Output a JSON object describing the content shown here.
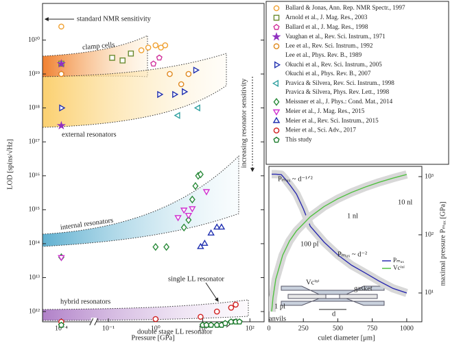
{
  "chart_data": [
    {
      "type": "scatter",
      "x_label": "Pressure [GPa]",
      "y_label": "LOD [spins/√Hz]",
      "xscale": "log",
      "yscale": "log",
      "xlim": [
        4e-05,
        200
      ],
      "x_break": [
        0.0004,
        0.06
      ],
      "ylim": [
        500000000000.0,
        1.2e+21
      ],
      "xticks": [
        {
          "value": 0.0001,
          "label": "10⁻⁴"
        },
        {
          "value": 0.1,
          "label": "10⁻¹"
        },
        {
          "value": 1,
          "label": "10⁰"
        },
        {
          "value": 10,
          "label": "10¹"
        },
        {
          "value": 100,
          "label": "10²"
        }
      ],
      "yticks": [
        {
          "value": 1000000000000.0,
          "label": "10¹²"
        },
        {
          "value": 10000000000000.0,
          "label": "10¹³"
        },
        {
          "value": 100000000000000.0,
          "label": "10¹⁴"
        },
        {
          "value": 1000000000000000.0,
          "label": "10¹⁵"
        },
        {
          "value": 1e+16,
          "label": "10¹⁶"
        },
        {
          "value": 1e+17,
          "label": "10¹⁷"
        },
        {
          "value": 1e+18,
          "label": "10¹⁸"
        },
        {
          "value": 1e+19,
          "label": "10¹⁹"
        },
        {
          "value": 1e+20,
          "label": "10²⁰"
        }
      ],
      "annotations": [
        "standard NMR sensitivity",
        "clamp cells",
        "external resonators",
        "internal resonators",
        "hybrid resonators",
        "single LL resonator",
        "double stage LL resonator",
        "increasing resonator sensitivity"
      ],
      "series": [
        {
          "name": "Ballard & Jonas, Ann. Rep. NMR Spectr., 1997",
          "color": "#f0a030",
          "marker": "circle",
          "filled": false,
          "x": [
            0.0001,
            0.5,
            0.7,
            1.0,
            1.3,
            1.6
          ],
          "values": [
            2.5e+20,
            5e+19,
            6e+19,
            7e+19,
            6e+19,
            7e+19
          ]
        },
        {
          "name": "Arnold et al., J. Mag. Res., 2003",
          "color": "#6a8a30",
          "marker": "square",
          "filled": false,
          "x": [
            0.0001,
            0.12,
            0.2,
            0.3
          ],
          "values": [
            2e+19,
            3e+19,
            2.5e+19,
            4e+19
          ]
        },
        {
          "name": "Ballard et al., J. Mag. Res., 1998",
          "color": "#d0309a",
          "marker": "pentagon",
          "filled": false,
          "x": [
            0.0001,
            0.9,
            1.2
          ],
          "values": [
            1e+19,
            2e+19,
            3e+19
          ]
        },
        {
          "name": "Vaughan et al., Rev. Sci. Instrum., 1971",
          "color": "#9030c0",
          "marker": "star",
          "filled": true,
          "x": [
            0.0001,
            0.0001
          ],
          "values": [
            3e+17,
            2e+19
          ]
        },
        {
          "name": "Lee et al., Rev. Sci. Instrum., 1992",
          "name_line2": "Lee et al., Phys. Rev. B., 1989",
          "color": "#e08a20",
          "marker": "circle",
          "filled": false,
          "x": [
            0.0001,
            2,
            3.5,
            5
          ],
          "values": [
            1e+19,
            1e+19,
            5e+18,
            1e+19
          ]
        },
        {
          "name": "Okuchi et al., Rev. Sci. Instrum., 2005",
          "name_line2": "Okuchi et al., Phys. Rev. B., 2007",
          "color": "#2030b0",
          "marker": "tri-right",
          "filled": false,
          "x": [
            0.0001,
            1.2,
            2.5,
            4,
            7
          ],
          "values": [
            1e+18,
            2.5e+18,
            2.5e+18,
            3e+18,
            1.3e+19
          ]
        },
        {
          "name": "Pravica & Silvera, Rev. Sci. Instrum., 1998",
          "name_line2": "Pravica & Silvera, Phys. Rev. Lett., 1998",
          "color": "#30a0a0",
          "marker": "tri-left",
          "filled": false,
          "x": [
            3,
            8
          ],
          "values": [
            6e+17,
            1e+18
          ]
        },
        {
          "name": "Meissner et al., J. Phys.: Cond. Mat., 2014",
          "color": "#2a8a3a",
          "marker": "diamond",
          "filled": false,
          "x": [
            0.0001,
            1,
            1.7,
            4,
            5,
            6,
            7,
            8,
            9
          ],
          "values": [
            40000000000000.0,
            80000000000000.0,
            80000000000000.0,
            300000000000000.0,
            500000000000000.0,
            2000000000000000.0,
            5000000000000000.0,
            1e+16,
            1.1e+16
          ]
        },
        {
          "name": "Meier et al., J. Mag. Res., 2015",
          "color": "#d030d0",
          "marker": "tri-down",
          "filled": false,
          "x": [
            0.0001,
            3,
            4,
            5,
            6,
            12
          ],
          "values": [
            40000000000000.0,
            600000000000000.0,
            1000000000000000.0,
            700000000000000.0,
            1100000000000000.0,
            3500000000000000.0
          ]
        },
        {
          "name": "Meier et al., Rev. Sci. Instrum., 2015",
          "color": "#2030b0",
          "marker": "tri-up",
          "filled": false,
          "x": [
            9,
            11,
            15,
            20,
            25
          ],
          "values": [
            80000000000000.0,
            100000000000000.0,
            200000000000000.0,
            300000000000000.0,
            300000000000000.0
          ]
        },
        {
          "name": "Meier et al., Sci. Adv., 2017",
          "color": "#d02020",
          "marker": "circle",
          "filled": false,
          "x": [
            0.0001,
            1,
            9,
            20,
            40,
            50
          ],
          "values": [
            500000000000.0,
            600000000000.0,
            700000000000.0,
            1000000000000.0,
            1300000000000.0,
            1600000000000.0
          ]
        },
        {
          "name": "This study",
          "color": "#1a7a2a",
          "marker": "pentagon",
          "filled": false,
          "x": [
            0.0001,
            10,
            12,
            15,
            20,
            25,
            30,
            40,
            50,
            60
          ],
          "values": [
            400000000000.0,
            400000000000.0,
            400000000000.0,
            400000000000.0,
            400000000000.0,
            400000000000.0,
            450000000000.0,
            500000000000.0,
            500000000000.0,
            500000000000.0
          ]
        }
      ]
    },
    {
      "type": "line",
      "x_label": "culet diameter [μm]",
      "y2_label": "maximal pressure Pₘₐₓ [GPa]",
      "xlim": [
        0,
        1110
      ],
      "xticks": [
        0,
        250,
        500,
        750,
        1000
      ],
      "yscale": "log",
      "ylim": [
        0.05,
        30000
      ],
      "y2scale": "log",
      "y2lim": [
        3.2,
        1500
      ],
      "y2ticks": [
        {
          "value": 10,
          "label": "10¹"
        },
        {
          "value": 100,
          "label": "10²"
        },
        {
          "value": 1000,
          "label": "10³"
        }
      ],
      "annotations": [
        "Pₘₐₓ ~ d⁻¹ᐟ²",
        "Pₘₐₓ ~ d⁻²",
        "1 pl",
        "100 pl",
        "1 nl",
        "10 nl",
        "gasket",
        "anvils",
        "d",
        "Vcⁱⁿⁱ"
      ],
      "series": [
        {
          "name": "Pₘₐₓ",
          "color": "#2a2ab0",
          "axis": "y2",
          "x": [
            20,
            50,
            90,
            120,
            160,
            200,
            250,
            300,
            400,
            500,
            600,
            700,
            800,
            900,
            1000
          ],
          "values": [
            1100,
            1100,
            1080,
            900,
            680,
            500,
            280,
            140,
            75,
            45,
            30,
            22,
            16,
            12,
            10
          ]
        },
        {
          "name": "Vcⁱⁿⁱ",
          "color": "#50c040",
          "axis": "y",
          "x": [
            20,
            30,
            50,
            100,
            150,
            200,
            300,
            400,
            500,
            600,
            700,
            800,
            900,
            1000
          ],
          "values": [
            0.12,
            0.4,
            1.9,
            15,
            51,
            120,
            405,
            960,
            1875,
            3240,
            5145,
            7680,
            10935,
            15000
          ]
        }
      ]
    }
  ]
}
